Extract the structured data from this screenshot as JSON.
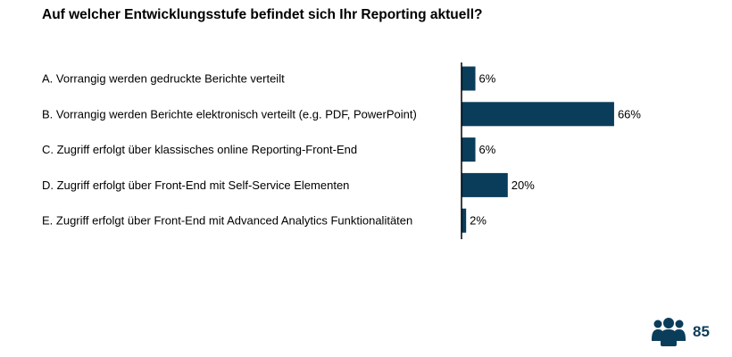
{
  "chart_data": {
    "type": "bar",
    "orientation": "horizontal",
    "title": "Auf welcher Entwicklungsstufe befindet sich Ihr Reporting aktuell?",
    "categories": [
      "A. Vorrangig werden gedruckte Berichte verteilt",
      "B. Vorrangig werden Berichte elektronisch verteilt (e.g. PDF, PowerPoint)",
      "C. Zugriff erfolgt über klassisches online Reporting-Front-End",
      "D. Zugriff erfolgt über Front-End mit Self-Service Elementen",
      "E. Zugriff erfolgt über Front-End mit Advanced Analytics Funktionalitäten"
    ],
    "values": [
      6,
      66,
      6,
      20,
      2
    ],
    "value_labels": [
      "6%",
      "66%",
      "6%",
      "20%",
      "2%"
    ],
    "unit": "%",
    "grid": false,
    "bar_color": "#0a3d5a"
  },
  "respondents": {
    "icon": "users-icon",
    "count": "85",
    "color": "#0a3d5a"
  }
}
